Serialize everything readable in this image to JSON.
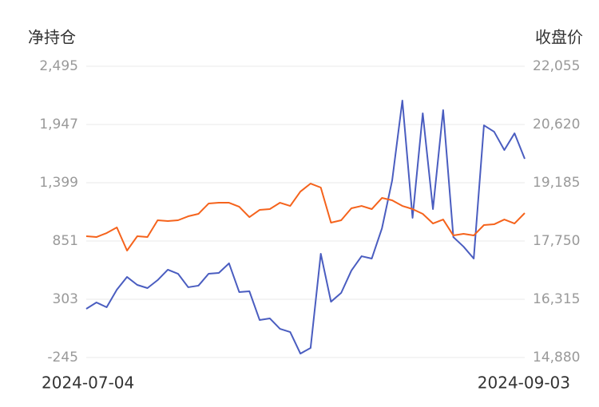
{
  "chart_data": {
    "type": "line",
    "y_label": "净持仓",
    "y2_label": "收盘价",
    "categories": [
      "2024-07-04",
      null,
      null,
      null,
      null,
      null,
      null,
      null,
      null,
      null,
      null,
      null,
      null,
      null,
      null,
      null,
      null,
      null,
      null,
      null,
      null,
      null,
      null,
      null,
      null,
      null,
      null,
      null,
      null,
      null,
      null,
      null,
      null,
      null,
      null,
      null,
      null,
      null,
      null,
      null,
      null,
      null,
      null,
      "2024-09-03"
    ],
    "ylim": [
      -245,
      2495
    ],
    "yticks": [
      -245,
      303,
      851,
      {
        "value": 1399,
        "label": "1,399"
      },
      {
        "value": 1947,
        "label": "1,947"
      },
      {
        "value": 2495,
        "label": "2,495"
      }
    ],
    "y2lim": [
      14880,
      22055
    ],
    "y2ticks": [
      {
        "value": 14880,
        "label": "14,880"
      },
      {
        "value": 16315,
        "label": "16,315"
      },
      {
        "value": 17750,
        "label": "17,750"
      },
      {
        "value": 19185,
        "label": "19,185"
      },
      {
        "value": 20620,
        "label": "20,620"
      },
      {
        "value": 22055,
        "label": "22,055"
      }
    ],
    "grid": true,
    "series": [
      {
        "color": "#4a5dc0",
        "axis": "y",
        "values": [
          213,
          273,
          228,
          393,
          513,
          438,
          408,
          483,
          581,
          543,
          416,
          431,
          543,
          551,
          641,
          371,
          378,
          108,
          123,
          25,
          -5,
          -208,
          -155,
          731,
          280,
          363,
          573,
          708,
          686,
          971,
          1421,
          2172,
          1069,
          2052,
          1151,
          2082,
          888,
          798,
          686,
          1939,
          1879,
          1707,
          1864,
          1624
        ]
      },
      {
        "color": "#f5631c",
        "axis": "y2",
        "values": [
          17867,
          17848,
          17946,
          18084,
          17514,
          17867,
          17848,
          18261,
          18241,
          18261,
          18359,
          18418,
          18673,
          18693,
          18693,
          18595,
          18339,
          18516,
          18536,
          18693,
          18614,
          18968,
          19165,
          19067,
          18202,
          18261,
          18556,
          18614,
          18536,
          18811,
          18752,
          18614,
          18536,
          18418,
          18182,
          18280,
          17887,
          17926,
          17887,
          18143,
          18162,
          18280,
          18182,
          18438
        ]
      }
    ]
  }
}
